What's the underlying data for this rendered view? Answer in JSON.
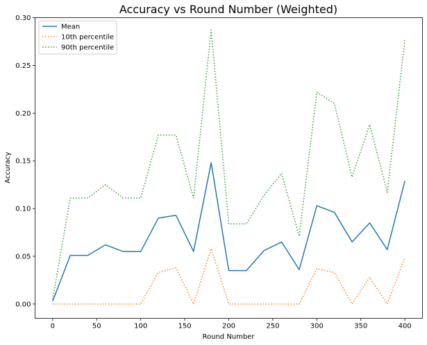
{
  "chart_data": {
    "type": "line",
    "title": "Accuracy vs Round Number (Weighted)",
    "xlabel": "Round Number",
    "ylabel": "Accuracy",
    "xlim": [
      -20,
      420
    ],
    "ylim": [
      -0.015,
      0.3
    ],
    "x_ticks": [
      0,
      50,
      100,
      150,
      200,
      250,
      300,
      350,
      400
    ],
    "x_tick_labels": [
      "0",
      "50",
      "100",
      "150",
      "200",
      "250",
      "300",
      "350",
      "400"
    ],
    "y_ticks": [
      0.0,
      0.05,
      0.1,
      0.15,
      0.2,
      0.25,
      0.3
    ],
    "y_tick_labels": [
      "0.00",
      "0.05",
      "0.10",
      "0.15",
      "0.20",
      "0.25",
      "0.30"
    ],
    "grid": false,
    "legend_position": "top-left",
    "x": [
      0,
      20,
      40,
      60,
      80,
      100,
      120,
      140,
      160,
      180,
      200,
      220,
      240,
      260,
      280,
      300,
      320,
      340,
      360,
      380,
      400
    ],
    "series": [
      {
        "name": "Mean",
        "color": "#1f77b4",
        "style": "solid",
        "values": [
          0.003,
          0.051,
          0.051,
          0.062,
          0.055,
          0.055,
          0.09,
          0.093,
          0.055,
          0.148,
          0.035,
          0.035,
          0.056,
          0.065,
          0.036,
          0.103,
          0.096,
          0.065,
          0.085,
          0.057,
          0.129
        ]
      },
      {
        "name": "10th percentile",
        "color": "#ff7f0e",
        "style": "dotted",
        "values": [
          0.0,
          0.0,
          0.0,
          0.0,
          0.0,
          0.0,
          0.033,
          0.038,
          0.0,
          0.058,
          0.0,
          0.0,
          0.0,
          0.0,
          0.0,
          0.037,
          0.033,
          0.0,
          0.028,
          0.0,
          0.049
        ]
      },
      {
        "name": "90th percentile",
        "color": "#2ca02c",
        "style": "dotted",
        "values": [
          0.005,
          0.111,
          0.111,
          0.125,
          0.111,
          0.111,
          0.177,
          0.177,
          0.111,
          0.287,
          0.084,
          0.084,
          0.114,
          0.137,
          0.071,
          0.222,
          0.21,
          0.133,
          0.188,
          0.117,
          0.277
        ]
      }
    ]
  }
}
